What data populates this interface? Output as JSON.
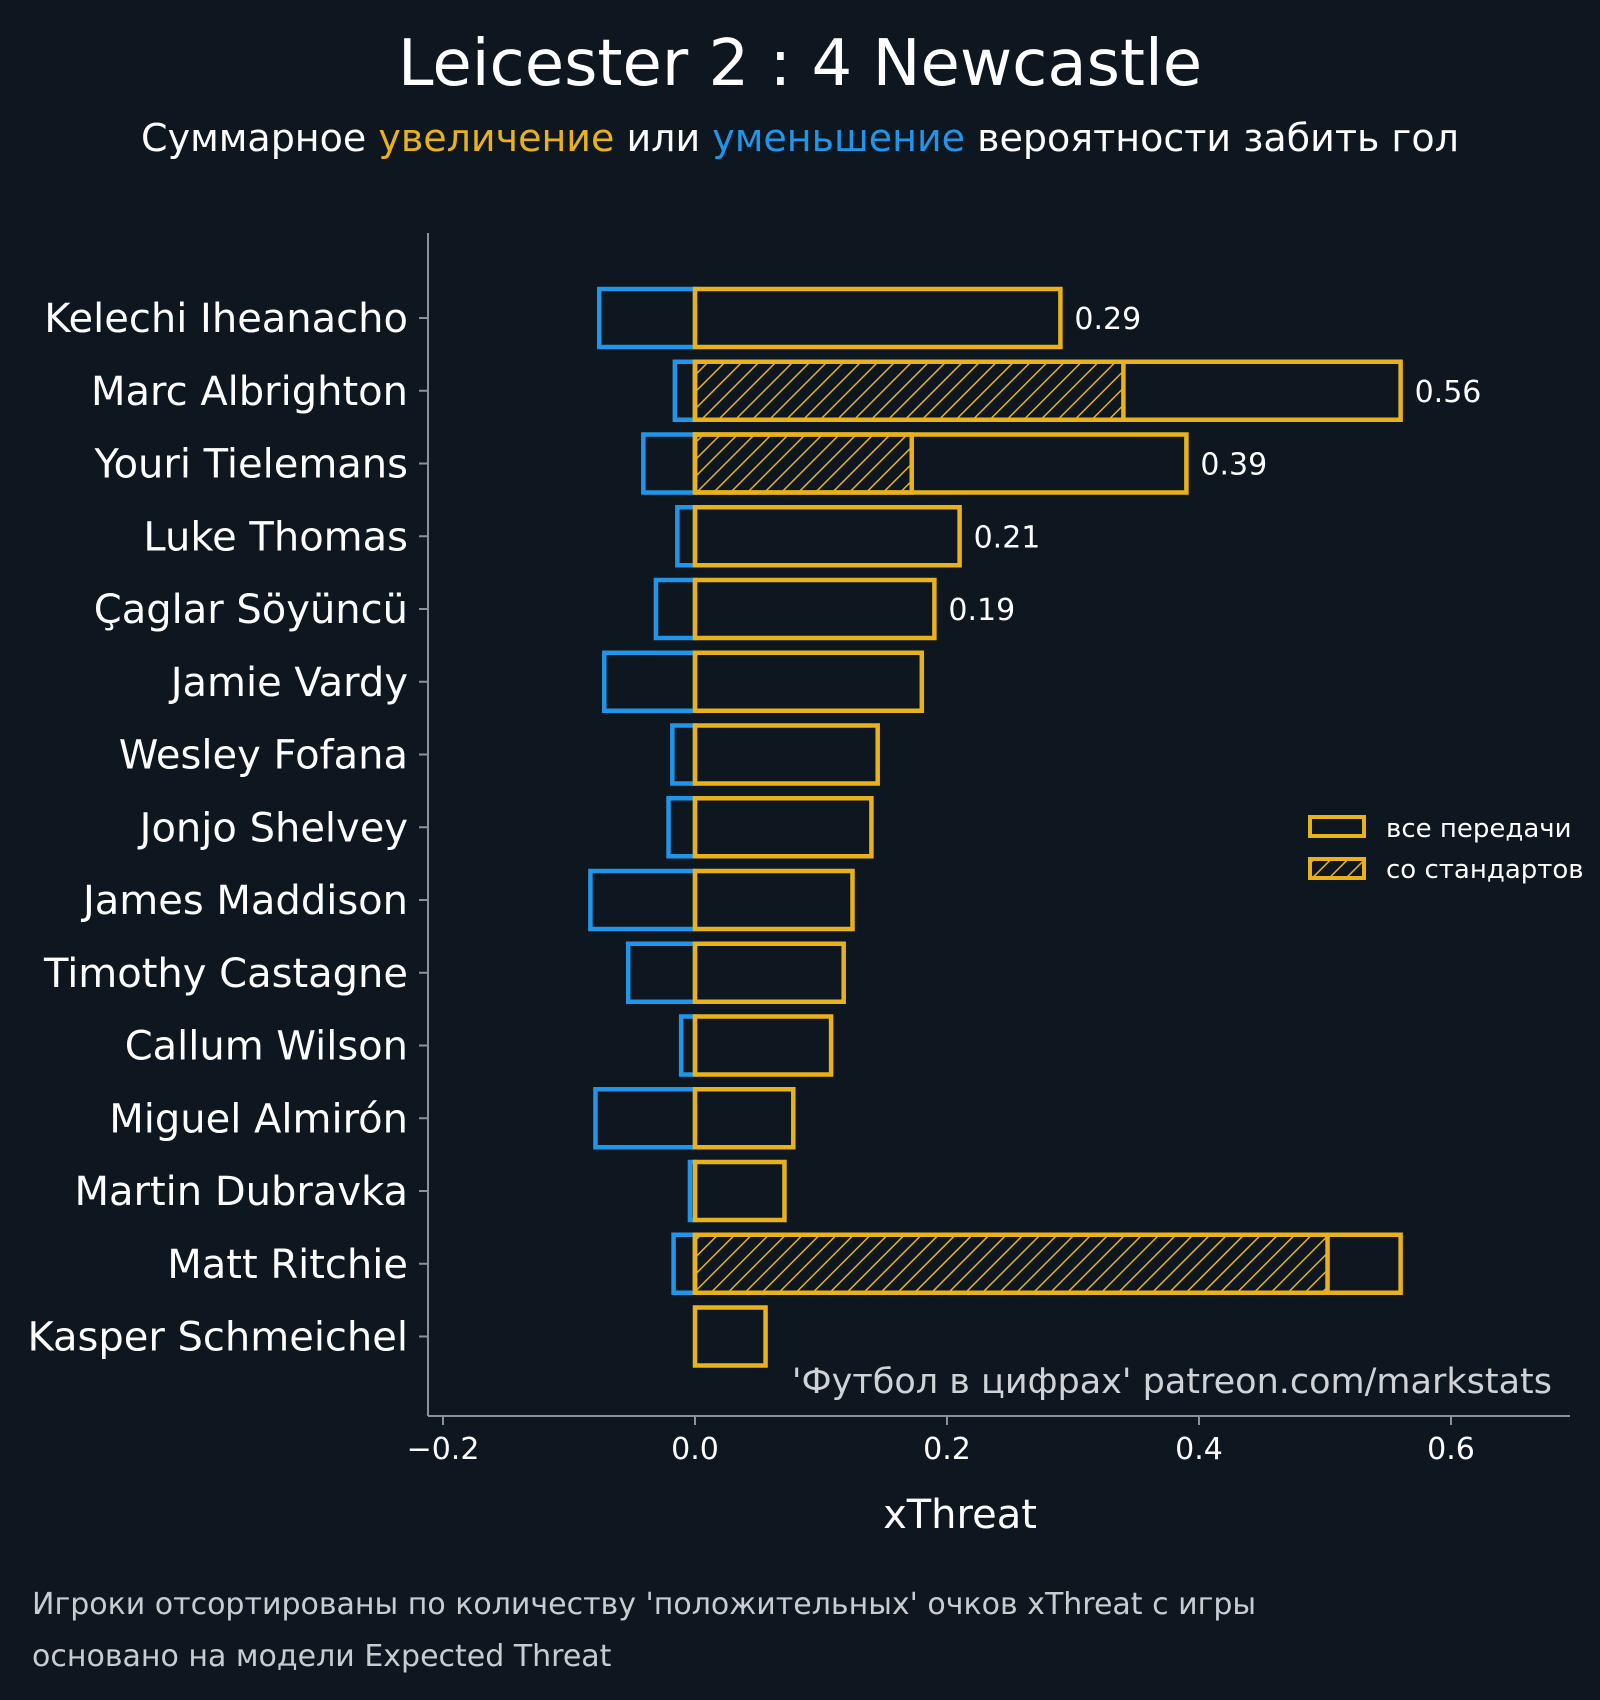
{
  "chart_data": {
    "type": "bar",
    "orientation": "horizontal",
    "title": "Leicester 2 : 4 Newcastle",
    "subtitle": {
      "prefix": "Суммарное ",
      "increase_word": "увеличение",
      "middle": " или ",
      "decrease_word": "уменьшение",
      "suffix": " вероятности забить гол"
    },
    "xlabel": "xThreat",
    "xlim": [
      -0.22,
      0.69
    ],
    "xticks": [
      -0.2,
      0.0,
      0.2,
      0.4,
      0.6
    ],
    "xtick_labels": [
      "−0.2",
      "0.0",
      "0.2",
      "0.4",
      "0.6"
    ],
    "categories": [
      "Kelechi Iheanacho",
      "Marc Albrighton",
      "Youri Tielemans",
      "Luke Thomas",
      "Çaglar Söyüncü",
      "Jamie Vardy",
      "Wesley Fofana",
      "Jonjo Shelvey",
      "James Maddison",
      "Timothy Castagne",
      "Callum Wilson",
      "Miguel Almirón",
      "Martin Dubravka",
      "Matt Ritchie",
      "Kasper Schmeichel"
    ],
    "series": [
      {
        "name": "все передачи",
        "values": [
          0.29,
          0.56,
          0.39,
          0.21,
          0.19,
          0.18,
          0.145,
          0.14,
          0.125,
          0.118,
          0.108,
          0.078,
          0.071,
          0.56,
          0.056
        ]
      },
      {
        "name": "со стандартов",
        "values": [
          0,
          0.34,
          0.172,
          0,
          0,
          0,
          0,
          0,
          0,
          0,
          0,
          0,
          0,
          0.502,
          0
        ]
      },
      {
        "values": [
          -0.076,
          -0.016,
          -0.041,
          -0.014,
          -0.031,
          -0.072,
          -0.018,
          -0.021,
          -0.083,
          -0.053,
          -0.011,
          -0.079,
          -0.004,
          -0.017,
          0
        ]
      }
    ],
    "value_labels": [
      "0.29",
      "0.56",
      "0.39",
      "0.21",
      "0.19",
      "",
      "",
      "",
      "",
      "",
      "",
      "",
      "",
      "",
      ""
    ],
    "legend": {
      "position": "right",
      "items": [
        "все передачи",
        "со стандартов"
      ]
    },
    "watermark": "'Футбол в цифрах' patreon.com/markstats",
    "footnotes": [
      "Игроки отсортированы по количеству 'положительных' очков xThreat с игры",
      "основано на модели Expected Threat"
    ],
    "colors": {
      "background": "#0e1720",
      "positive": "#e8b21c",
      "negative": "#2196e8",
      "axis": "#8a939a",
      "text": "#ffffff"
    },
    "grid": false
  }
}
